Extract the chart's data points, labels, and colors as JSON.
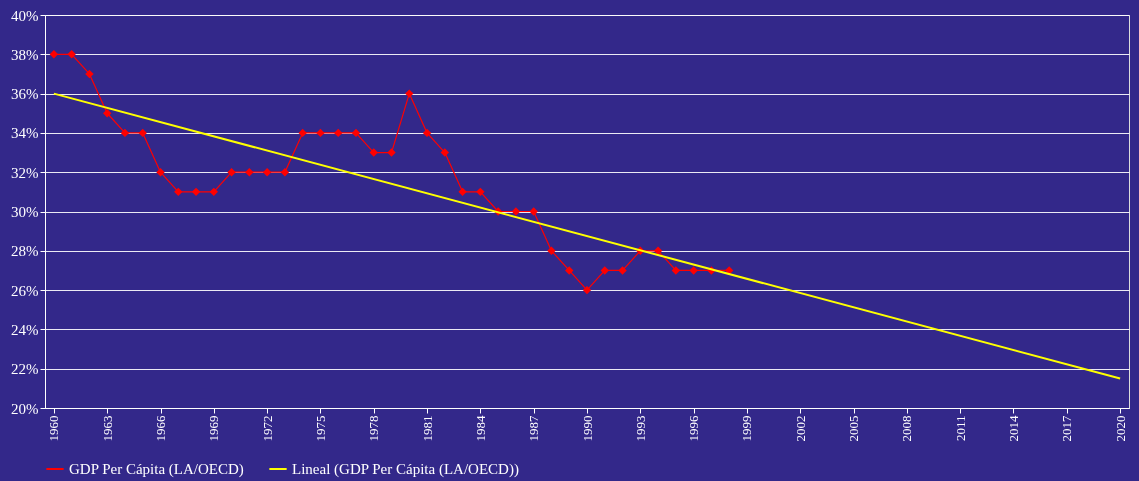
{
  "chart_data": {
    "type": "line",
    "xlim": [
      1959.5,
      2020.5
    ],
    "xticks": [
      1960,
      1963,
      1966,
      1969,
      1972,
      1975,
      1978,
      1981,
      1984,
      1987,
      1990,
      1993,
      1996,
      1999,
      2002,
      2005,
      2008,
      2011,
      2014,
      2017,
      2020
    ],
    "ylim": [
      20,
      40
    ],
    "yticks": [
      {
        "value": 20,
        "label": "20%"
      },
      {
        "value": 22,
        "label": "22%"
      },
      {
        "value": 24,
        "label": "24%"
      },
      {
        "value": 26,
        "label": "26%"
      },
      {
        "value": 28,
        "label": "28%"
      },
      {
        "value": 30,
        "label": "30%"
      },
      {
        "value": 32,
        "label": "32%"
      },
      {
        "value": 34,
        "label": "34%"
      },
      {
        "value": 36,
        "label": "36%"
      },
      {
        "value": 38,
        "label": "38%"
      },
      {
        "value": 40,
        "label": "40%"
      }
    ],
    "grid": "y",
    "legend": "bottom",
    "series": [
      {
        "name": "GDP Per Cápita (LA/OECD)",
        "type": "line",
        "color": "#ff0000",
        "marker": "diamond",
        "line_style": "solid",
        "x": [
          1960,
          1961,
          1962,
          1963,
          1964,
          1965,
          1966,
          1967,
          1968,
          1969,
          1970,
          1971,
          1972,
          1973,
          1974,
          1975,
          1976,
          1977,
          1978,
          1979,
          1980,
          1981,
          1982,
          1983,
          1984,
          1985,
          1986,
          1987,
          1988,
          1989,
          1990,
          1991,
          1992,
          1993,
          1994,
          1995,
          1996,
          1997,
          1998
        ],
        "values": [
          38,
          38,
          37,
          35,
          34,
          34,
          32,
          31,
          31,
          31,
          32,
          32,
          32,
          32,
          34,
          34,
          34,
          34,
          33,
          33,
          36,
          34,
          33,
          31,
          31,
          30,
          30,
          30,
          28,
          27,
          26,
          27,
          27,
          28,
          28,
          27,
          27,
          27,
          27
        ]
      },
      {
        "name": "Lineal (GDP Per Cápita (LA/OECD))",
        "type": "line",
        "color": "#ffff00",
        "marker": "none",
        "line_style": "solid",
        "x": [
          1960,
          2020
        ],
        "values": [
          36,
          21.5
        ]
      }
    ]
  }
}
